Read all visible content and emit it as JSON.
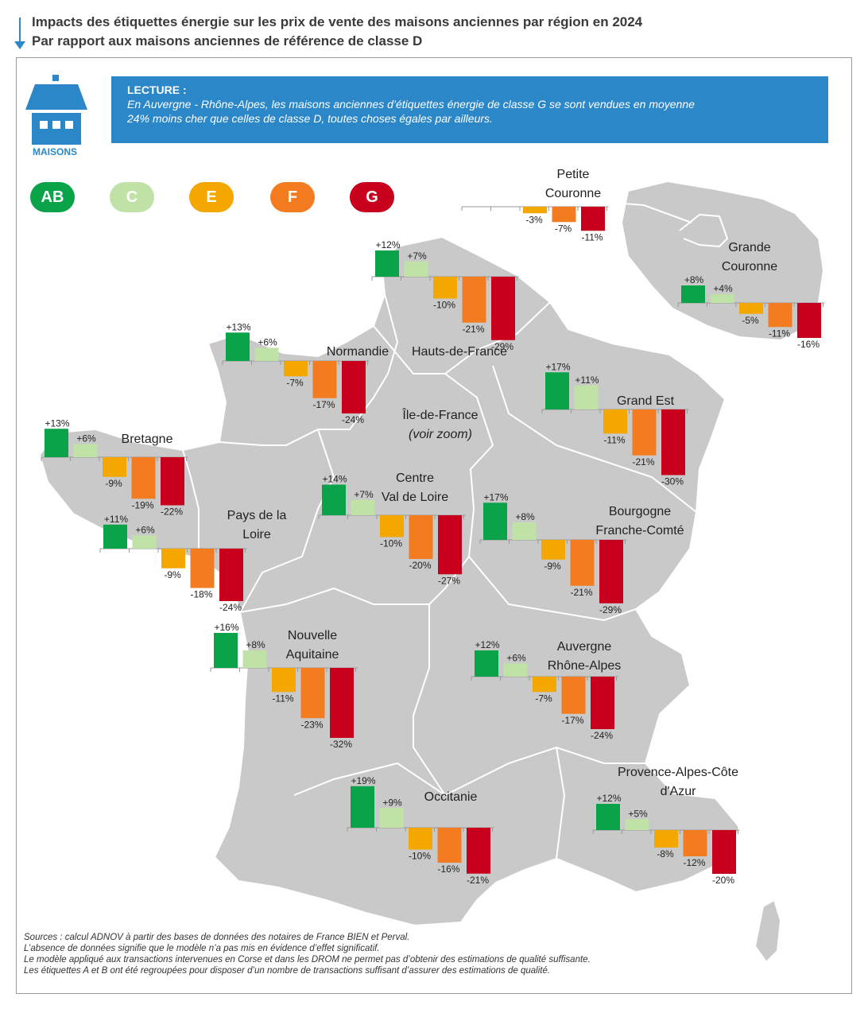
{
  "title_line1": "Impacts des étiquettes énergie sur les prix de vente des maisons anciennes par région en 2024",
  "title_line2": "Par rapport aux maisons anciennes de référence de classe D",
  "house_label": "MAISONS",
  "lecture": {
    "title": "LECTURE :",
    "line1": "En Auvergne - Rhône-Alpes, les maisons anciennes d’étiquettes énergie de classe G se sont vendues en moyenne",
    "line2": "24% moins cher que celles de classe D, toutes choses égales par ailleurs."
  },
  "colors": {
    "AB": "#0aa34a",
    "C": "#c1e2a6",
    "E": "#f3a700",
    "F": "#f47c20",
    "G": "#c8001e",
    "map": "#c9c9c9",
    "accent": "#2b87c8"
  },
  "sources": {
    "line1": "Sources : calcul ADNOV à partir des bases de données des notaires de France BIEN et Perval.",
    "line2": "L’absence de données signifie que le modèle n’a pas mis en évidence d’effet significatif.",
    "line3": "Le modèle appliqué aux transactions intervenues en Corse et dans les DROM ne permet pas d’obtenir des estimations de qualité suffisante.",
    "line4": "Les étiquettes A et B ont été regroupées pour disposer d’un nombre de transactions suffisant d’assurer des estimations de qualité."
  },
  "chart_data": {
    "type": "bar",
    "title": "Impacts des étiquettes énergie sur les prix de vente des maisons anciennes par région en 2024",
    "subtitle": "Par rapport aux maisons anciennes de référence de classe D",
    "categories": [
      "AB",
      "C",
      "E",
      "F",
      "G"
    ],
    "unit": "%",
    "baseline": "D",
    "regions": [
      {
        "name": [
          "Hauts-de-France"
        ],
        "values": [
          12,
          7,
          -10,
          -21,
          -29
        ],
        "labels": [
          "+12%",
          "+7%",
          "-10%",
          "-21%",
          "-29%"
        ]
      },
      {
        "name": [
          "Normandie"
        ],
        "values": [
          13,
          6,
          -7,
          -17,
          -24
        ],
        "labels": [
          "+13%",
          "+6%",
          "-7%",
          "-17%",
          "-24%"
        ]
      },
      {
        "name": [
          "Bretagne"
        ],
        "values": [
          13,
          6,
          -9,
          -19,
          -22
        ],
        "labels": [
          "+13%",
          "+6%",
          "-9%",
          "-19%",
          "-22%"
        ]
      },
      {
        "name": [
          "Pays de la",
          "Loire"
        ],
        "values": [
          11,
          6,
          -9,
          -18,
          -24
        ],
        "labels": [
          "+11%",
          "+6%",
          "-9%",
          "-18%",
          "-24%"
        ]
      },
      {
        "name": [
          "Centre",
          "Val de Loire"
        ],
        "values": [
          14,
          7,
          -10,
          -20,
          -27
        ],
        "labels": [
          "+14%",
          "+7%",
          "-10%",
          "-20%",
          "-27%"
        ]
      },
      {
        "name": [
          "Grand Est"
        ],
        "values": [
          17,
          11,
          -11,
          -21,
          -30
        ],
        "labels": [
          "+17%",
          "+11%",
          "-11%",
          "-21%",
          "-30%"
        ]
      },
      {
        "name": [
          "Bourgogne",
          "Franche-Comté"
        ],
        "values": [
          17,
          8,
          -9,
          -21,
          -29
        ],
        "labels": [
          "+17%",
          "+8%",
          "-9%",
          "-21%",
          "-29%"
        ]
      },
      {
        "name": [
          "Nouvelle",
          "Aquitaine"
        ],
        "values": [
          16,
          8,
          -11,
          -23,
          -32
        ],
        "labels": [
          "+16%",
          "+8%",
          "-11%",
          "-23%",
          "-32%"
        ]
      },
      {
        "name": [
          "Auvergne",
          "Rhône-Alpes"
        ],
        "values": [
          12,
          6,
          -7,
          -17,
          -24
        ],
        "labels": [
          "+12%",
          "+6%",
          "-7%",
          "-17%",
          "-24%"
        ]
      },
      {
        "name": [
          "Occitanie"
        ],
        "values": [
          19,
          9,
          -10,
          -16,
          -21
        ],
        "labels": [
          "+19%",
          "+9%",
          "-10%",
          "-16%",
          "-21%"
        ]
      },
      {
        "name": [
          "Provence-Alpes-Côte",
          "d'Azur"
        ],
        "values": [
          12,
          5,
          -8,
          -12,
          -20
        ],
        "labels": [
          "+12%",
          "+5%",
          "-8%",
          "-12%",
          "-20%"
        ]
      },
      {
        "name": [
          "Petite",
          "Couronne"
        ],
        "values": [
          null,
          null,
          -3,
          -7,
          -11
        ],
        "labels": [
          "",
          "",
          "-3%",
          "-7%",
          "-11%"
        ]
      },
      {
        "name": [
          "Grande",
          "Couronne"
        ],
        "values": [
          8,
          4,
          -5,
          -11,
          -16
        ],
        "labels": [
          "+8%",
          "+4%",
          "-5%",
          "-11%",
          "-16%"
        ]
      }
    ],
    "idf_label": [
      "Île-de-France",
      "(voir zoom)"
    ]
  }
}
